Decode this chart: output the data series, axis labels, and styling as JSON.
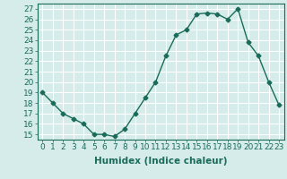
{
  "x": [
    0,
    1,
    2,
    3,
    4,
    5,
    6,
    7,
    8,
    9,
    10,
    11,
    12,
    13,
    14,
    15,
    16,
    17,
    18,
    19,
    20,
    21,
    22,
    23
  ],
  "y": [
    19,
    18,
    17,
    16.5,
    16,
    15,
    15,
    14.8,
    15.5,
    17,
    18.5,
    20,
    22.5,
    24.5,
    25,
    26.5,
    26.6,
    26.5,
    26,
    27,
    23.8,
    22.5,
    20,
    17.8
  ],
  "line_color": "#1a6b5a",
  "marker": "D",
  "markersize": 2.5,
  "linewidth": 1.0,
  "xlabel": "Humidex (Indice chaleur)",
  "xlim": [
    -0.5,
    23.5
  ],
  "ylim": [
    14.5,
    27.5
  ],
  "yticks": [
    15,
    16,
    17,
    18,
    19,
    20,
    21,
    22,
    23,
    24,
    25,
    26,
    27
  ],
  "xticks": [
    0,
    1,
    2,
    3,
    4,
    5,
    6,
    7,
    8,
    9,
    10,
    11,
    12,
    13,
    14,
    15,
    16,
    17,
    18,
    19,
    20,
    21,
    22,
    23
  ],
  "xtick_labels": [
    "0",
    "1",
    "2",
    "3",
    "4",
    "5",
    "6",
    "7",
    "8",
    "9",
    "10",
    "11",
    "12",
    "13",
    "14",
    "15",
    "16",
    "17",
    "18",
    "19",
    "20",
    "21",
    "22",
    "23"
  ],
  "bg_color": "#d5ecea",
  "grid_color": "#ffffff",
  "tick_fontsize": 6.5,
  "xlabel_fontsize": 7.5
}
